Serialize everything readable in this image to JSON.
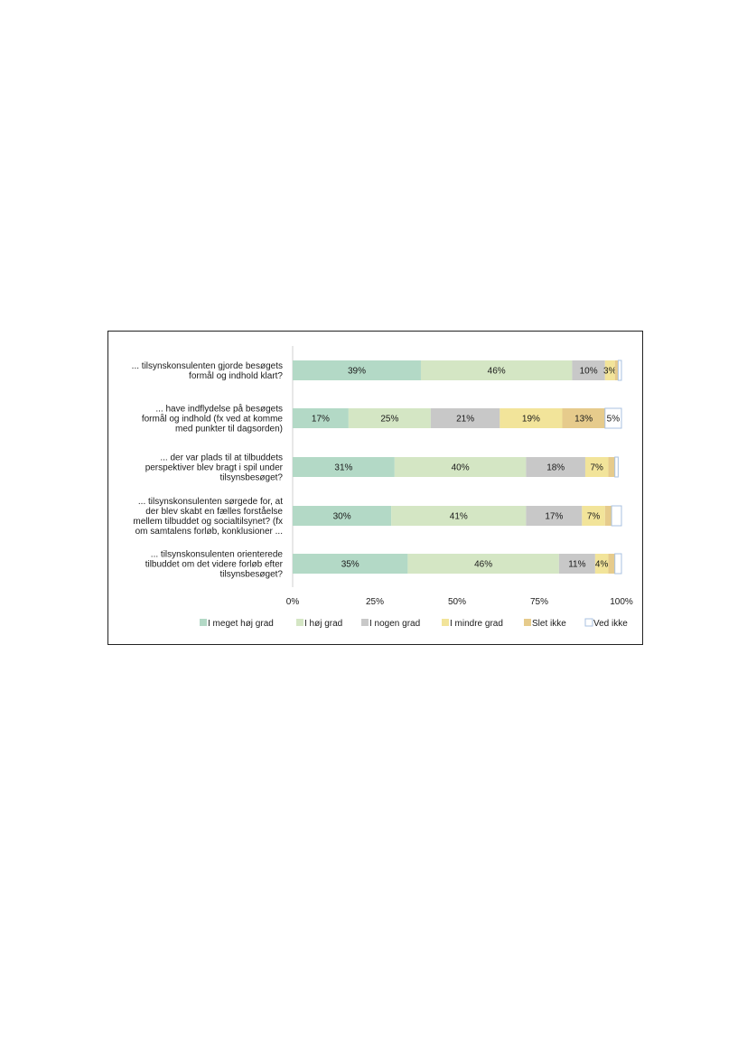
{
  "chart_data": {
    "type": "bar",
    "orientation": "horizontal",
    "stacked": true,
    "categories": [
      [
        "... tilsynskonsulenten  gjorde besøgets",
        "formål og indhold klart?"
      ],
      [
        "... have indflydelse på besøgets",
        "formål og indhold  (fx ved at komme",
        "med punkter til dagsorden)"
      ],
      [
        "... der var plads til at tilbuddets",
        "perspektiver  blev  bragt i spil under",
        "tilsynsbesøget?"
      ],
      [
        "... tilsynskonsulenten  sørgede for, at",
        "der blev  skabt en fælles forståelse",
        "mellem tilbuddet og socialtilsynet?  (fx",
        "om samtalens  forløb, konklusioner ..."
      ],
      [
        "... tilsynskonsulenten  orienterede",
        "tilbuddet  om det videre forløb efter",
        "tilsynsbesøget?"
      ]
    ],
    "series": [
      {
        "name": "I meget høj grad",
        "color": "#b3d9c6",
        "values": [
          39,
          17,
          31,
          30,
          35
        ],
        "labels": [
          "39%",
          "17%",
          "31%",
          "30%",
          "35%"
        ]
      },
      {
        "name": "I høj grad",
        "color": "#d4e6c4",
        "values": [
          46,
          25,
          40,
          41,
          46
        ],
        "labels": [
          "46%",
          "25%",
          "40%",
          "41%",
          "46%"
        ]
      },
      {
        "name": "I nogen grad",
        "color": "#c8c8c8",
        "values": [
          10,
          21,
          18,
          17,
          11
        ],
        "labels": [
          "10%",
          "21%",
          "18%",
          "17%",
          "11%"
        ]
      },
      {
        "name": "I mindre grad",
        "color": "#f2e49a",
        "values": [
          3,
          19,
          7,
          7,
          4
        ],
        "labels": [
          "3%",
          "19%",
          "7%",
          "7%",
          "4%"
        ]
      },
      {
        "name": "Slet ikke",
        "color": "#e6cb8c",
        "values": [
          1,
          13,
          2,
          2,
          2
        ],
        "labels": [
          "",
          "13%",
          "",
          "",
          ""
        ]
      },
      {
        "name": "Ved ikke",
        "color": "#ffffff",
        "stroke": "#a9c2e0",
        "values": [
          1,
          5,
          1,
          3,
          2
        ],
        "labels": [
          "",
          "5%",
          "",
          "",
          ""
        ]
      }
    ],
    "xlim": [
      0,
      100
    ],
    "xticks": [
      "0%",
      "25%",
      "50%",
      "75%",
      "100%"
    ],
    "legend_position": "bottom",
    "grid": false
  }
}
